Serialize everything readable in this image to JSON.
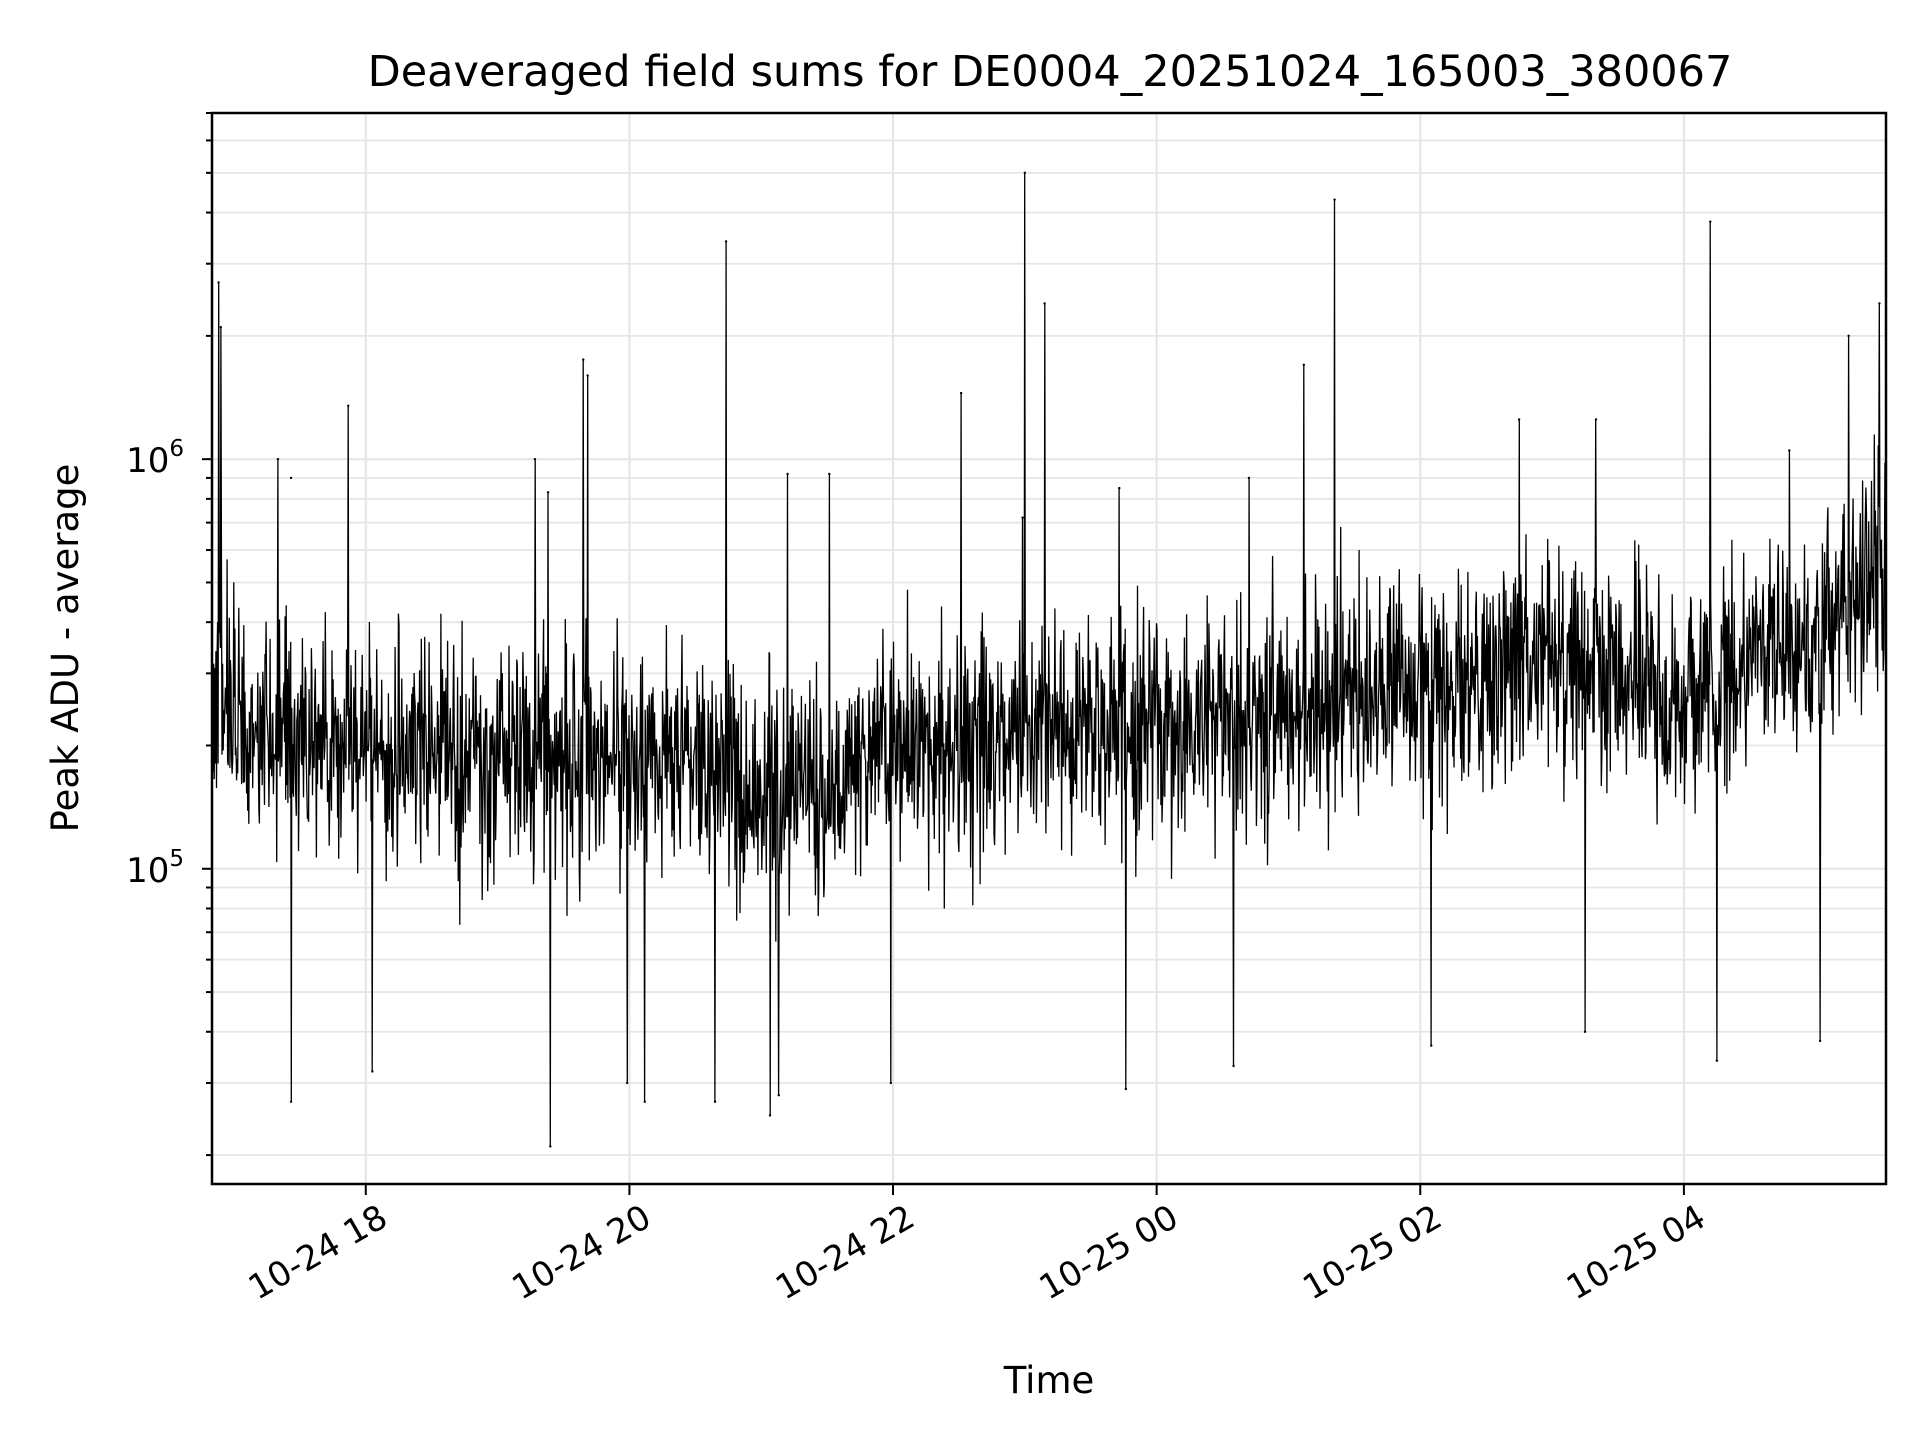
{
  "chart_data": {
    "type": "line",
    "title": "Deaveraged field sums for DE0004_20251024_165003_380067",
    "xlabel": "Time",
    "ylabel": "Peak ADU - average",
    "yscale": "log",
    "ylim": [
      17000,
      7000000
    ],
    "xlim": [
      "2025-10-24 16:50",
      "2025-10-25 05:32"
    ],
    "grid": true,
    "color": "#000000",
    "x_ticks": [
      {
        "t": "2025-10-24 18:00",
        "label": "10-24 18"
      },
      {
        "t": "2025-10-24 20:00",
        "label": "10-24 20"
      },
      {
        "t": "2025-10-24 22:00",
        "label": "10-24 22"
      },
      {
        "t": "2025-10-25 00:00",
        "label": "10-25 00"
      },
      {
        "t": "2025-10-25 02:00",
        "label": "10-25 02"
      },
      {
        "t": "2025-10-25 04:00",
        "label": "10-25 04"
      }
    ],
    "y_ticks": [
      {
        "value": 100000,
        "base": "10",
        "exp": "5"
      },
      {
        "value": 1000000,
        "base": "10",
        "exp": "6"
      }
    ],
    "trend": [
      {
        "t": "2025-10-24 16:50",
        "value": 260000
      },
      {
        "t": "2025-10-24 17:30",
        "value": 210000
      },
      {
        "t": "2025-10-24 18:30",
        "value": 200000
      },
      {
        "t": "2025-10-24 19:30",
        "value": 185000
      },
      {
        "t": "2025-10-24 20:30",
        "value": 180000
      },
      {
        "t": "2025-10-24 21:10",
        "value": 150000
      },
      {
        "t": "2025-10-24 22:00",
        "value": 190000
      },
      {
        "t": "2025-10-24 23:00",
        "value": 210000
      },
      {
        "t": "2025-10-25 00:00",
        "value": 220000
      },
      {
        "t": "2025-10-25 01:00",
        "value": 240000
      },
      {
        "t": "2025-10-25 02:00",
        "value": 270000
      },
      {
        "t": "2025-10-25 03:00",
        "value": 320000
      },
      {
        "t": "2025-10-25 04:00",
        "value": 270000
      },
      {
        "t": "2025-10-25 05:00",
        "value": 380000
      },
      {
        "t": "2025-10-25 05:32",
        "value": 550000
      }
    ],
    "spikes": [
      {
        "t": "2025-10-24 16:53",
        "value": 2700000
      },
      {
        "t": "2025-10-24 16:54",
        "value": 2100000
      },
      {
        "t": "2025-10-24 17:20",
        "value": 1000000
      },
      {
        "t": "2025-10-24 17:26",
        "value": 900000
      },
      {
        "t": "2025-10-24 17:52",
        "value": 1350000
      },
      {
        "t": "2025-10-24 19:17",
        "value": 1000000
      },
      {
        "t": "2025-10-24 19:23",
        "value": 830000
      },
      {
        "t": "2025-10-24 19:39",
        "value": 1750000
      },
      {
        "t": "2025-10-24 19:41",
        "value": 1600000
      },
      {
        "t": "2025-10-24 20:44",
        "value": 3400000
      },
      {
        "t": "2025-10-24 21:12",
        "value": 920000
      },
      {
        "t": "2025-10-24 21:31",
        "value": 920000
      },
      {
        "t": "2025-10-24 22:31",
        "value": 1450000
      },
      {
        "t": "2025-10-24 22:59",
        "value": 720000
      },
      {
        "t": "2025-10-24 23:00",
        "value": 5000000
      },
      {
        "t": "2025-10-24 23:09",
        "value": 2400000
      },
      {
        "t": "2025-10-24 23:43",
        "value": 850000
      },
      {
        "t": "2025-10-25 00:42",
        "value": 900000
      },
      {
        "t": "2025-10-25 01:07",
        "value": 1700000
      },
      {
        "t": "2025-10-25 01:21",
        "value": 4300000
      },
      {
        "t": "2025-10-25 02:45",
        "value": 1250000
      },
      {
        "t": "2025-10-25 03:20",
        "value": 1250000
      },
      {
        "t": "2025-10-25 04:12",
        "value": 3800000
      },
      {
        "t": "2025-10-25 04:48",
        "value": 1050000
      },
      {
        "t": "2025-10-25 05:15",
        "value": 2000000
      },
      {
        "t": "2025-10-25 05:29",
        "value": 2400000
      }
    ],
    "dips": [
      {
        "t": "2025-10-24 17:26",
        "value": 27000
      },
      {
        "t": "2025-10-24 18:03",
        "value": 32000
      },
      {
        "t": "2025-10-24 19:24",
        "value": 21000
      },
      {
        "t": "2025-10-24 19:59",
        "value": 30000
      },
      {
        "t": "2025-10-24 20:07",
        "value": 27000
      },
      {
        "t": "2025-10-24 20:39",
        "value": 27000
      },
      {
        "t": "2025-10-24 21:04",
        "value": 25000
      },
      {
        "t": "2025-10-24 21:08",
        "value": 28000
      },
      {
        "t": "2025-10-24 21:59",
        "value": 30000
      },
      {
        "t": "2025-10-24 23:46",
        "value": 29000
      },
      {
        "t": "2025-10-25 00:35",
        "value": 33000
      },
      {
        "t": "2025-10-25 02:05",
        "value": 37000
      },
      {
        "t": "2025-10-25 03:15",
        "value": 40000
      },
      {
        "t": "2025-10-25 04:15",
        "value": 34000
      },
      {
        "t": "2025-10-25 05:02",
        "value": 38000
      }
    ]
  }
}
